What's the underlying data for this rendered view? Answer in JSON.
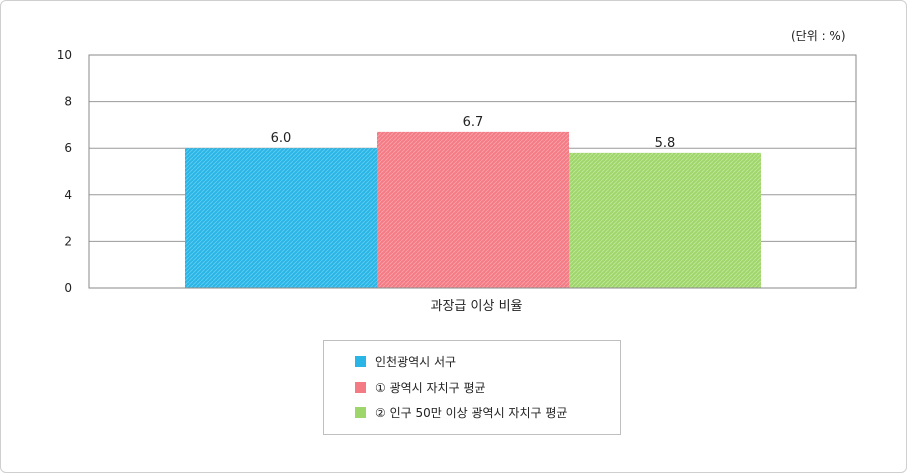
{
  "unit_label": "(단위 : %)",
  "chart_data": {
    "type": "bar",
    "categories": [
      "과장급 이상 비율"
    ],
    "series": [
      {
        "name": "인천광역시 서구",
        "values": [
          6.0
        ],
        "label": "6.0",
        "color": "#29b5e6"
      },
      {
        "name": "① 광역시 자치구 평균",
        "values": [
          6.7
        ],
        "label": "6.7",
        "color": "#f47a84"
      },
      {
        "name": "② 인구 50만 이상 광역시 자치구 평균",
        "values": [
          5.8
        ],
        "label": "5.8",
        "color": "#9fd66b"
      }
    ],
    "xlabel": "",
    "ylabel": "",
    "ylim": [
      0,
      10
    ],
    "yticks": [
      "0",
      "2",
      "4",
      "6",
      "8",
      "10"
    ],
    "grid": true,
    "legend_position": "bottom-center"
  }
}
